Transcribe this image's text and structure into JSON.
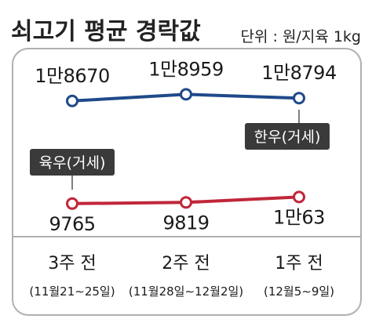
{
  "title": "쇠고기 평균 경락값",
  "unit": "단위 : 원/지육 1kg",
  "chart_data": {
    "type": "line",
    "categories": [
      {
        "period": "3주 전",
        "range": "(11월21∼25일)"
      },
      {
        "period": "2주 전",
        "range": "(11월28일∼12월2일)"
      },
      {
        "period": "1주 전",
        "range": "(12월5∼9일)"
      }
    ],
    "series": [
      {
        "name": "한우(거세)",
        "values": [
          18670,
          18959,
          18794
        ],
        "labels": [
          "1만8670",
          "1만8959",
          "1만8794"
        ],
        "color": "#1f4a8a"
      },
      {
        "name": "육우(거세)",
        "values": [
          9765,
          9819,
          10063
        ],
        "labels": [
          "9765",
          "9819",
          "1만63"
        ],
        "color": "#c0263a"
      }
    ]
  },
  "colors": {
    "frame": "#b0b0b0",
    "tag_bg": "#3a3a3a"
  }
}
